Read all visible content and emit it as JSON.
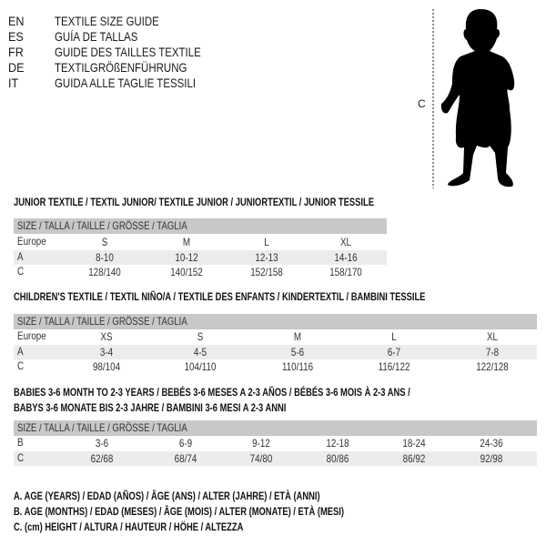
{
  "languages": [
    {
      "code": "EN",
      "text": "TEXTILE SIZE GUIDE"
    },
    {
      "code": "ES",
      "text": "GUÍA DE TALLAS"
    },
    {
      "code": "FR",
      "text": "GUIDE DES TAILLES TEXTILE"
    },
    {
      "code": "DE",
      "text": "TEXTILGRÖßENFÜHRUNG"
    },
    {
      "code": "IT",
      "text": "GUIDA ALLE TAGLIE TESSILI"
    }
  ],
  "figure": {
    "measure_label": "C",
    "icon": "child-silhouette-icon"
  },
  "tables": [
    {
      "title": "JUNIOR TEXTILE / TEXTIL JUNIOR/ TEXTILE JUNIOR / JUNIORTEXTIL / JUNIOR TESSILE",
      "header": "SIZE / TALLA / TAILLE / GRÖSSE / TAGLIA",
      "rows": [
        {
          "label": "Europe",
          "values": [
            "S",
            "M",
            "L",
            "XL"
          ]
        },
        {
          "label": "A",
          "values": [
            "8-10",
            "10-12",
            "12-13",
            "14-16"
          ]
        },
        {
          "label": "C",
          "values": [
            "128/140",
            "140/152",
            "152/158",
            "158/170"
          ]
        }
      ]
    },
    {
      "title": "CHILDREN'S TEXTILE / TEXTIL NIÑO/A / TEXTILE DES ENFANTS / KINDERTEXTIL / BAMBINI TESSILE",
      "header": "SIZE / TALLA / TAILLE / GRÖSSE / TAGLIA",
      "rows": [
        {
          "label": "Europe",
          "values": [
            "XS",
            "S",
            "M",
            "L",
            "XL"
          ]
        },
        {
          "label": "A",
          "values": [
            "3-4",
            "4-5",
            "5-6",
            "6-7",
            "7-8"
          ]
        },
        {
          "label": "C",
          "values": [
            "98/104",
            "104/110",
            "110/116",
            "116/122",
            "122/128"
          ]
        }
      ]
    },
    {
      "title": "BABIES 3-6 MONTH TO 2-3 YEARS / BEBÉS 3-6 MESES A 2-3 AÑOS / BÉBÉS 3-6 MOIS À 2-3 ANS /",
      "title2": "BABYS 3-6 MONATE BIS 2-3 JAHRE / BAMBINI 3-6 MESI A 2-3 ANNI",
      "header": "SIZE / TALLA / TAILLE / GRÖSSE / TAGLIA",
      "rows": [
        {
          "label": "B",
          "values": [
            "3-6",
            "6-9",
            "9-12",
            "12-18",
            "18-24",
            "24-36"
          ]
        },
        {
          "label": "C",
          "values": [
            "62/68",
            "68/74",
            "74/80",
            "80/86",
            "86/92",
            "92/98"
          ]
        }
      ]
    }
  ],
  "legend": [
    "A. AGE (YEARS) / EDAD (AÑOS) / ÂGE (ANS) / ALTER (JAHRE) / ETÀ (ANNI)",
    "B. AGE (MONTHS) / EDAD (MESES) / ÂGE (MOIS) / ALTER (MONATE) / ETÀ (MESI)",
    "C. (cm) HEIGHT / ALTURA / HAUTEUR / HÖHE / ALTEZZA"
  ]
}
